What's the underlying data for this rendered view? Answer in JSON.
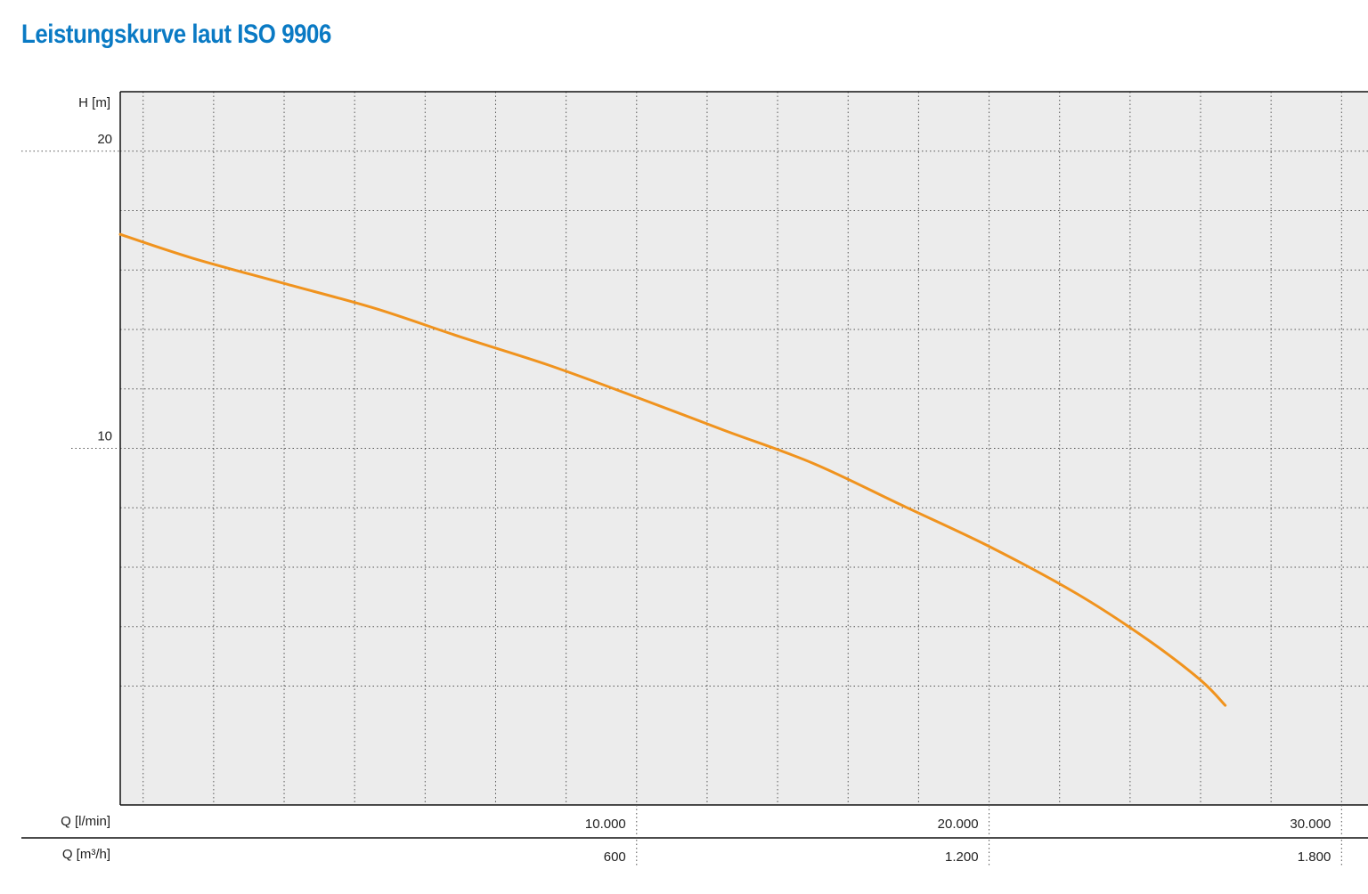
{
  "page_title": "Leistungskurve laut ISO 9906",
  "chart_data": {
    "type": "line",
    "title": "Leistungskurve laut ISO 9906",
    "ylabel": "H [m]",
    "ylim": [
      -2,
      22
    ],
    "y_ticks": [
      {
        "value": 20,
        "label": "20"
      },
      {
        "value": 10,
        "label": "10"
      }
    ],
    "y_grid_step": 2,
    "xlim": [
      -4650,
      30750
    ],
    "x_grid_step": 2000,
    "x_axes": [
      {
        "label": "Q [l/min]",
        "ticks": [
          {
            "value": 10000,
            "label": "10.000"
          },
          {
            "value": 20000,
            "label": "20.000"
          },
          {
            "value": 30000,
            "label": "30.000"
          }
        ]
      },
      {
        "label": "Q [m³/h]",
        "ticks": [
          {
            "value": 600,
            "label": "600"
          },
          {
            "value": 1200,
            "label": "1.200"
          },
          {
            "value": 1800,
            "label": "1.800"
          }
        ]
      }
    ],
    "grid": true,
    "series": [
      {
        "color": "#f0931e",
        "x": [
          -4650,
          -2600,
          0,
          2600,
          5000,
          7500,
          10000,
          12500,
          15000,
          17500,
          20000,
          22500,
          24500,
          26000,
          26700
        ],
        "y": [
          17.2,
          16.4,
          15.55,
          14.7,
          13.75,
          12.8,
          11.72,
          10.6,
          9.5,
          8.1,
          6.7,
          5.1,
          3.56,
          2.2,
          1.35
        ]
      }
    ]
  }
}
